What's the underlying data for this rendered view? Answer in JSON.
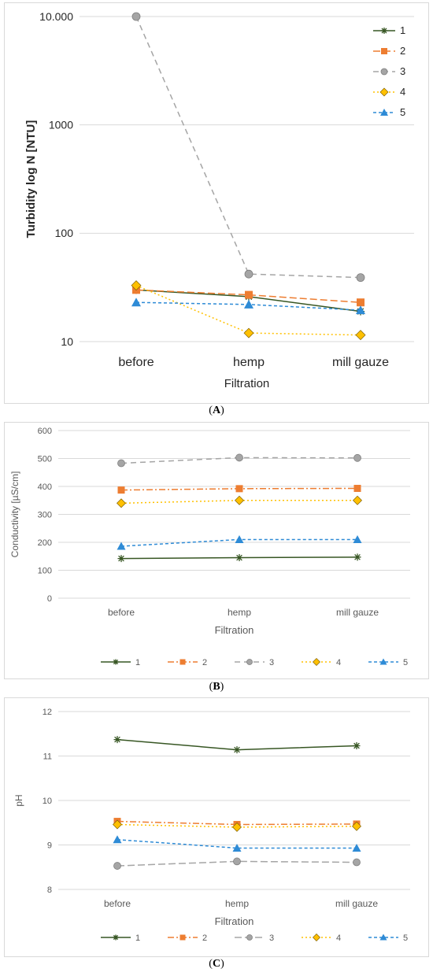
{
  "chart_data": [
    {
      "id": "A",
      "type": "line",
      "caption": "A",
      "xlabel": "Filtration",
      "ylabel": "Turbidity log N [NTU]",
      "yscale": "log",
      "ylim": [
        10,
        10000
      ],
      "yticks": [
        10,
        100,
        1000,
        10000
      ],
      "ytick_labels": [
        "10",
        "100",
        "1000",
        "10.000"
      ],
      "categories": [
        "before",
        "hemp",
        "mill gauze"
      ],
      "legend_position": "top-right",
      "series": [
        {
          "name": "1",
          "values": [
            30,
            26,
            19
          ],
          "color": "#375623",
          "marker": "asterisk",
          "dash": "solid"
        },
        {
          "name": "2",
          "values": [
            30,
            27,
            23
          ],
          "color": "#ed7d31",
          "marker": "square",
          "dash": "long-dash"
        },
        {
          "name": "3",
          "values": [
            10000,
            42,
            39
          ],
          "color": "#a5a5a5",
          "marker": "circle",
          "dash": "dash"
        },
        {
          "name": "4",
          "values": [
            33,
            12,
            11.5
          ],
          "color": "#ffc000",
          "marker": "diamond",
          "dash": "dot"
        },
        {
          "name": "5",
          "values": [
            23,
            22,
            19.5
          ],
          "color": "#2e8bd6",
          "marker": "triangle",
          "dash": "short-dash"
        }
      ]
    },
    {
      "id": "B",
      "type": "line",
      "caption": "B",
      "xlabel": "Filtration",
      "ylabel": "Conductivity [µS/cm]",
      "yscale": "linear",
      "ylim": [
        0,
        600
      ],
      "yticks": [
        0,
        100,
        200,
        300,
        400,
        500,
        600
      ],
      "ytick_labels": [
        "0",
        "100",
        "200",
        "300",
        "400",
        "500",
        "600"
      ],
      "categories": [
        "before",
        "hemp",
        "mill gauze"
      ],
      "legend_position": "bottom",
      "series": [
        {
          "name": "1",
          "values": [
            142,
            145,
            147
          ],
          "color": "#375623",
          "marker": "asterisk",
          "dash": "solid"
        },
        {
          "name": "2",
          "values": [
            387,
            392,
            393
          ],
          "color": "#ed7d31",
          "marker": "square",
          "dash": "dash-dot"
        },
        {
          "name": "3",
          "values": [
            483,
            503,
            502
          ],
          "color": "#a5a5a5",
          "marker": "circle",
          "dash": "dash"
        },
        {
          "name": "4",
          "values": [
            340,
            350,
            350
          ],
          "color": "#ffc000",
          "marker": "diamond",
          "dash": "dot"
        },
        {
          "name": "5",
          "values": [
            186,
            210,
            210
          ],
          "color": "#2e8bd6",
          "marker": "triangle",
          "dash": "short-dash"
        }
      ]
    },
    {
      "id": "C",
      "type": "line",
      "caption": "C",
      "xlabel": "Filtration",
      "ylabel": "pH",
      "yscale": "linear",
      "ylim": [
        8,
        12
      ],
      "yticks": [
        8,
        9,
        10,
        11,
        12
      ],
      "ytick_labels": [
        "8",
        "9",
        "10",
        "11",
        "12"
      ],
      "categories": [
        "before",
        "hemp",
        "mill gauze"
      ],
      "legend_position": "bottom",
      "series": [
        {
          "name": "1",
          "values": [
            11.37,
            11.14,
            11.23
          ],
          "color": "#375623",
          "marker": "asterisk",
          "dash": "solid"
        },
        {
          "name": "2",
          "values": [
            9.53,
            9.46,
            9.47
          ],
          "color": "#ed7d31",
          "marker": "square",
          "dash": "dash-dot"
        },
        {
          "name": "3",
          "values": [
            8.53,
            8.63,
            8.61
          ],
          "color": "#a5a5a5",
          "marker": "circle",
          "dash": "long-dash"
        },
        {
          "name": "4",
          "values": [
            9.46,
            9.4,
            9.42
          ],
          "color": "#ffc000",
          "marker": "diamond",
          "dash": "dot"
        },
        {
          "name": "5",
          "values": [
            9.12,
            8.93,
            8.93
          ],
          "color": "#2e8bd6",
          "marker": "triangle",
          "dash": "short-dash"
        }
      ]
    }
  ]
}
